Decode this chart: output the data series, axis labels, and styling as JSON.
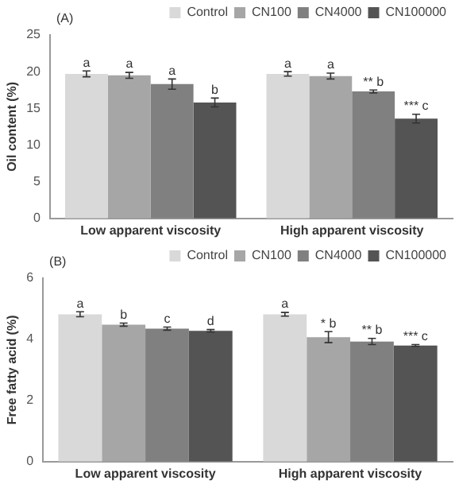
{
  "chart_data": [
    {
      "type": "bar",
      "ylabel": "Oil content (%)",
      "categories": [
        "Low apparent viscosity",
        "High apparent viscosity"
      ],
      "ylim": [
        0,
        25
      ],
      "yticks": [
        0,
        5,
        10,
        15,
        20,
        25
      ],
      "grid": false,
      "legend": "top right",
      "annotations": [
        "(A)"
      ],
      "series": [
        {
          "name": "Control",
          "color": "#d9d9d9",
          "values": [
            19.7,
            19.7
          ],
          "errors": [
            0.4,
            0.3
          ],
          "value_labels": [
            "a",
            "a"
          ]
        },
        {
          "name": "CN100",
          "color": "#a6a6a6",
          "values": [
            19.5,
            19.4
          ],
          "errors": [
            0.4,
            0.4
          ],
          "value_labels": [
            "a",
            "a"
          ]
        },
        {
          "name": "CN4000",
          "color": "#808080",
          "values": [
            18.3,
            17.3
          ],
          "errors": [
            0.7,
            0.2
          ],
          "value_labels": [
            "a",
            "** b"
          ]
        },
        {
          "name": "CN100000",
          "color": "#545454",
          "values": [
            15.8,
            13.6
          ],
          "errors": [
            0.6,
            0.6
          ],
          "value_labels": [
            "b",
            "*** c"
          ]
        }
      ]
    },
    {
      "type": "bar",
      "ylabel": "Free fatty acid (%)",
      "categories": [
        "Low apparent viscosity",
        "High apparent viscosity"
      ],
      "ylim": [
        0,
        6
      ],
      "yticks": [
        0,
        2,
        4,
        6
      ],
      "grid": false,
      "legend": "top right",
      "annotations": [
        "(B)"
      ],
      "series": [
        {
          "name": "Control",
          "color": "#d9d9d9",
          "values": [
            4.82,
            4.82
          ],
          "errors": [
            0.08,
            0.06
          ],
          "value_labels": [
            "a",
            "a"
          ]
        },
        {
          "name": "CN100",
          "color": "#a6a6a6",
          "values": [
            4.48,
            4.07
          ],
          "errors": [
            0.05,
            0.18
          ],
          "value_labels": [
            "b",
            "* b"
          ]
        },
        {
          "name": "CN4000",
          "color": "#808080",
          "values": [
            4.35,
            3.93
          ],
          "errors": [
            0.05,
            0.1
          ],
          "value_labels": [
            "c",
            "** b"
          ]
        },
        {
          "name": "CN100000",
          "color": "#545454",
          "values": [
            4.28,
            3.8
          ],
          "errors": [
            0.04,
            0.03
          ],
          "value_labels": [
            "d",
            "*** c"
          ]
        }
      ]
    }
  ]
}
